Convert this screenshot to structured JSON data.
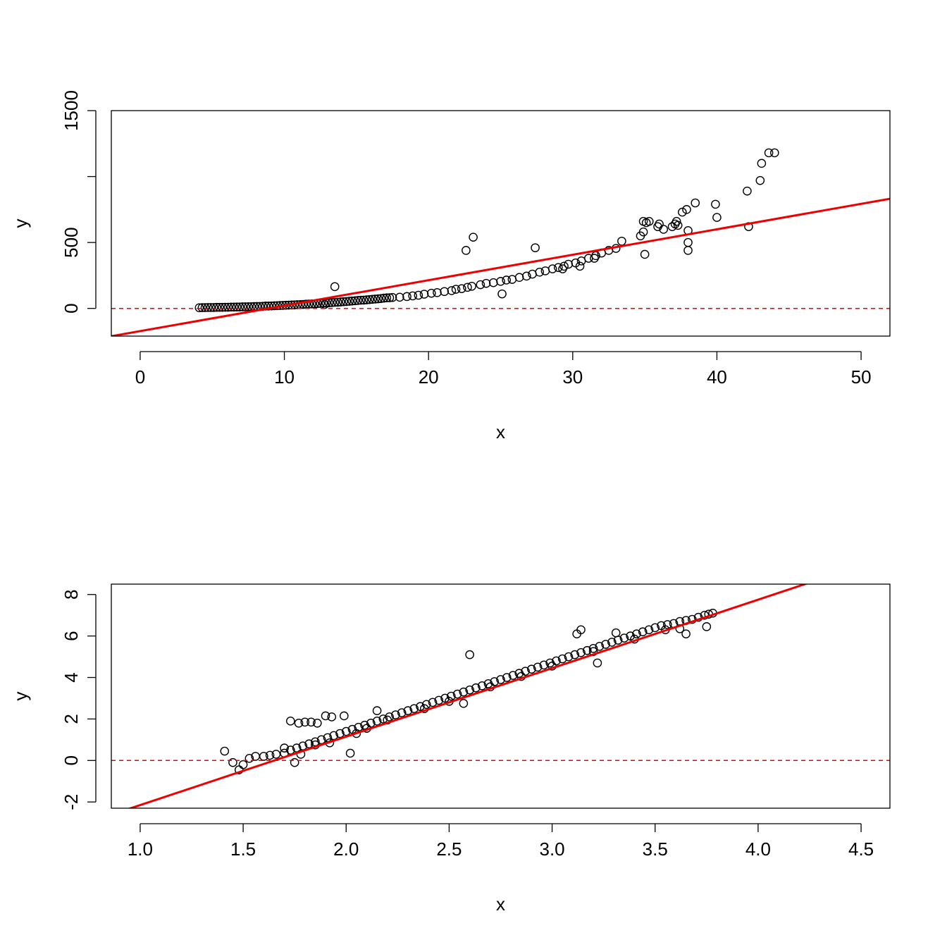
{
  "colors": {
    "points": "#000000",
    "fit_line": "#ee0000",
    "reference_line": "#ee0000",
    "background": "#ffffff"
  },
  "chart_data": [
    {
      "type": "scatter",
      "title": "",
      "xlabel": "x",
      "ylabel": "y",
      "xlim": [
        -2,
        52
      ],
      "ylim": [
        -210,
        1500
      ],
      "x_ticks": [
        0,
        10,
        20,
        30,
        40,
        50
      ],
      "x_tick_labels": [
        "0",
        "10",
        "20",
        "30",
        "40",
        "50"
      ],
      "y_ticks": [
        0,
        500,
        1000,
        1500
      ],
      "y_tick_labels": [
        "0",
        "500",
        "",
        "1500"
      ],
      "fit_line": {
        "intercept": -172,
        "slope": 19.3,
        "style": "solid"
      },
      "reference_line": {
        "y": 0,
        "style": "dashed"
      },
      "points": [
        [
          4.1,
          5
        ],
        [
          4.3,
          6
        ],
        [
          4.5,
          6
        ],
        [
          4.7,
          7
        ],
        [
          4.9,
          7
        ],
        [
          5.1,
          7
        ],
        [
          5.3,
          8
        ],
        [
          5.5,
          8
        ],
        [
          5.7,
          8
        ],
        [
          5.9,
          9
        ],
        [
          6.1,
          9
        ],
        [
          6.3,
          10
        ],
        [
          6.5,
          10
        ],
        [
          6.7,
          11
        ],
        [
          6.9,
          11
        ],
        [
          7.1,
          12
        ],
        [
          7.3,
          12
        ],
        [
          7.5,
          13
        ],
        [
          7.7,
          13
        ],
        [
          7.9,
          14
        ],
        [
          8.1,
          15
        ],
        [
          8.3,
          15
        ],
        [
          8.5,
          16
        ],
        [
          8.7,
          18
        ],
        [
          8.9,
          18
        ],
        [
          9.1,
          19
        ],
        [
          9.3,
          20
        ],
        [
          9.5,
          21
        ],
        [
          9.7,
          22
        ],
        [
          9.9,
          23
        ],
        [
          10.1,
          24
        ],
        [
          10.3,
          25
        ],
        [
          10.5,
          26
        ],
        [
          10.7,
          27
        ],
        [
          10.9,
          28
        ],
        [
          11.1,
          29
        ],
        [
          11.3,
          30
        ],
        [
          11.5,
          32
        ],
        [
          11.7,
          33
        ],
        [
          11.9,
          34
        ],
        [
          12.1,
          35
        ],
        [
          12.3,
          37
        ],
        [
          12.5,
          38
        ],
        [
          12.7,
          40
        ],
        [
          12.9,
          41
        ],
        [
          13.1,
          43
        ],
        [
          13.3,
          44
        ],
        [
          13.5,
          46
        ],
        [
          13.7,
          47
        ],
        [
          13.9,
          49
        ],
        [
          14.1,
          51
        ],
        [
          14.3,
          52
        ],
        [
          14.5,
          54
        ],
        [
          14.7,
          56
        ],
        [
          14.9,
          58
        ],
        [
          15.1,
          60
        ],
        [
          15.3,
          62
        ],
        [
          15.5,
          63
        ],
        [
          15.7,
          65
        ],
        [
          15.9,
          67
        ],
        [
          16.1,
          69
        ],
        [
          16.3,
          71
        ],
        [
          16.5,
          73
        ],
        [
          16.7,
          75
        ],
        [
          16.9,
          78
        ],
        [
          17.1,
          80
        ],
        [
          17.3,
          81
        ],
        [
          17.5,
          83
        ],
        [
          13.5,
          165
        ],
        [
          12.8,
          30
        ],
        [
          18.0,
          85
        ],
        [
          18.5,
          90
        ],
        [
          18.9,
          95
        ],
        [
          19.3,
          100
        ],
        [
          19.7,
          108
        ],
        [
          20.2,
          115
        ],
        [
          20.6,
          120
        ],
        [
          21.1,
          128
        ],
        [
          21.6,
          135
        ],
        [
          21.9,
          145
        ],
        [
          22.3,
          150
        ],
        [
          22.7,
          160
        ],
        [
          23.0,
          168
        ],
        [
          23.6,
          180
        ],
        [
          24.0,
          190
        ],
        [
          24.5,
          195
        ],
        [
          25.0,
          205
        ],
        [
          25.4,
          215
        ],
        [
          25.1,
          110
        ],
        [
          25.8,
          220
        ],
        [
          26.3,
          235
        ],
        [
          26.8,
          245
        ],
        [
          27.2,
          260
        ],
        [
          27.7,
          275
        ],
        [
          28.1,
          285
        ],
        [
          28.6,
          300
        ],
        [
          29.0,
          310
        ],
        [
          29.4,
          320
        ],
        [
          29.7,
          335
        ],
        [
          30.2,
          345
        ],
        [
          30.6,
          360
        ],
        [
          31.1,
          380
        ],
        [
          31.6,
          400
        ],
        [
          32.0,
          420
        ],
        [
          32.5,
          440
        ],
        [
          33.0,
          455
        ],
        [
          33.4,
          510
        ],
        [
          34.7,
          550
        ],
        [
          34.9,
          580
        ],
        [
          35.1,
          650
        ],
        [
          35.3,
          660
        ],
        [
          35.9,
          620
        ],
        [
          36.0,
          640
        ],
        [
          36.3,
          600
        ],
        [
          36.9,
          620
        ],
        [
          37.1,
          640
        ],
        [
          37.3,
          630
        ],
        [
          37.6,
          730
        ],
        [
          37.9,
          750
        ],
        [
          38.5,
          800
        ],
        [
          39.9,
          790
        ],
        [
          40.0,
          690
        ],
        [
          42.1,
          890
        ],
        [
          42.2,
          620
        ],
        [
          43.0,
          970
        ],
        [
          43.1,
          1100
        ],
        [
          43.6,
          1180
        ],
        [
          44.0,
          1180
        ],
        [
          35.0,
          410
        ],
        [
          38.0,
          440
        ],
        [
          38.0,
          500
        ],
        [
          38.0,
          590
        ],
        [
          37.2,
          660
        ],
        [
          34.9,
          660
        ],
        [
          22.6,
          440
        ],
        [
          23.1,
          540
        ],
        [
          27.4,
          460
        ],
        [
          29.3,
          300
        ],
        [
          30.5,
          320
        ],
        [
          31.5,
          380
        ]
      ]
    },
    {
      "type": "scatter",
      "title": "",
      "xlabel": "x",
      "ylabel": "y",
      "xlim": [
        0.86,
        4.64
      ],
      "ylim": [
        -2.3,
        8.5
      ],
      "x_ticks": [
        1.0,
        1.5,
        2.0,
        2.5,
        3.0,
        3.5,
        4.0,
        4.5
      ],
      "x_tick_labels": [
        "1.0",
        "1.5",
        "2.0",
        "2.5",
        "3.0",
        "3.5",
        "4.0",
        "4.5"
      ],
      "y_ticks": [
        -2,
        0,
        2,
        4,
        6,
        8
      ],
      "y_tick_labels": [
        "-2",
        "0",
        "2",
        "4",
        "6",
        "8"
      ],
      "fit_line": {
        "intercept": -5.45,
        "slope": 3.3,
        "style": "solid"
      },
      "reference_line": {
        "y": 0,
        "style": "dashed"
      },
      "points": [
        [
          1.41,
          0.45
        ],
        [
          1.45,
          -0.1
        ],
        [
          1.48,
          -0.45
        ],
        [
          1.5,
          -0.2
        ],
        [
          1.53,
          0.1
        ],
        [
          1.56,
          0.2
        ],
        [
          1.6,
          0.2
        ],
        [
          1.63,
          0.25
        ],
        [
          1.66,
          0.3
        ],
        [
          1.7,
          0.35
        ],
        [
          1.73,
          0.5
        ],
        [
          1.76,
          0.6
        ],
        [
          1.79,
          0.7
        ],
        [
          1.82,
          0.8
        ],
        [
          1.85,
          0.9
        ],
        [
          1.88,
          1.0
        ],
        [
          1.91,
          1.1
        ],
        [
          1.94,
          1.2
        ],
        [
          1.97,
          1.3
        ],
        [
          2.0,
          1.4
        ],
        [
          2.03,
          1.5
        ],
        [
          2.06,
          1.6
        ],
        [
          2.09,
          1.7
        ],
        [
          2.12,
          1.8
        ],
        [
          2.15,
          1.9
        ],
        [
          2.18,
          2.0
        ],
        [
          2.21,
          2.1
        ],
        [
          2.24,
          2.2
        ],
        [
          2.27,
          2.3
        ],
        [
          2.3,
          2.4
        ],
        [
          2.33,
          2.5
        ],
        [
          2.36,
          2.6
        ],
        [
          2.39,
          2.7
        ],
        [
          2.42,
          2.8
        ],
        [
          2.45,
          2.9
        ],
        [
          2.48,
          3.0
        ],
        [
          2.51,
          3.1
        ],
        [
          2.54,
          3.2
        ],
        [
          2.57,
          3.3
        ],
        [
          2.6,
          3.4
        ],
        [
          2.63,
          3.5
        ],
        [
          2.66,
          3.6
        ],
        [
          2.69,
          3.7
        ],
        [
          2.72,
          3.8
        ],
        [
          2.75,
          3.9
        ],
        [
          2.78,
          4.0
        ],
        [
          2.81,
          4.1
        ],
        [
          2.84,
          4.2
        ],
        [
          2.87,
          4.3
        ],
        [
          2.9,
          4.4
        ],
        [
          2.93,
          4.5
        ],
        [
          2.96,
          4.6
        ],
        [
          2.99,
          4.7
        ],
        [
          3.02,
          4.8
        ],
        [
          3.05,
          4.9
        ],
        [
          3.08,
          5.0
        ],
        [
          3.11,
          5.1
        ],
        [
          3.14,
          5.2
        ],
        [
          3.17,
          5.3
        ],
        [
          3.2,
          5.4
        ],
        [
          3.23,
          5.5
        ],
        [
          3.26,
          5.6
        ],
        [
          3.29,
          5.7
        ],
        [
          3.32,
          5.8
        ],
        [
          3.35,
          5.9
        ],
        [
          3.38,
          6.0
        ],
        [
          3.41,
          6.1
        ],
        [
          3.44,
          6.2
        ],
        [
          3.47,
          6.3
        ],
        [
          3.5,
          6.4
        ],
        [
          3.53,
          6.5
        ],
        [
          3.56,
          6.55
        ],
        [
          3.59,
          6.6
        ],
        [
          3.62,
          6.7
        ],
        [
          3.65,
          6.75
        ],
        [
          3.68,
          6.8
        ],
        [
          3.71,
          6.9
        ],
        [
          3.74,
          7.0
        ],
        [
          3.76,
          7.05
        ],
        [
          3.78,
          7.1
        ],
        [
          1.73,
          1.9
        ],
        [
          1.77,
          1.8
        ],
        [
          1.8,
          1.85
        ],
        [
          1.83,
          1.85
        ],
        [
          1.86,
          1.8
        ],
        [
          1.9,
          2.15
        ],
        [
          1.93,
          2.1
        ],
        [
          1.99,
          2.15
        ],
        [
          2.15,
          2.4
        ],
        [
          1.75,
          -0.1
        ],
        [
          2.02,
          0.35
        ],
        [
          2.6,
          5.1
        ],
        [
          2.57,
          2.75
        ],
        [
          3.12,
          6.1
        ],
        [
          3.14,
          6.3
        ],
        [
          3.22,
          4.7
        ],
        [
          3.31,
          6.15
        ],
        [
          3.65,
          6.1
        ],
        [
          3.75,
          6.45
        ],
        [
          1.7,
          0.6
        ],
        [
          1.78,
          0.3
        ],
        [
          1.85,
          0.75
        ],
        [
          1.92,
          0.85
        ],
        [
          2.05,
          1.3
        ],
        [
          2.1,
          1.55
        ],
        [
          2.2,
          1.95
        ],
        [
          2.38,
          2.5
        ],
        [
          2.5,
          2.85
        ],
        [
          2.7,
          3.55
        ],
        [
          2.85,
          4.05
        ],
        [
          3.0,
          4.55
        ],
        [
          3.2,
          5.25
        ],
        [
          3.4,
          5.85
        ],
        [
          3.55,
          6.3
        ],
        [
          3.62,
          6.35
        ]
      ]
    }
  ]
}
